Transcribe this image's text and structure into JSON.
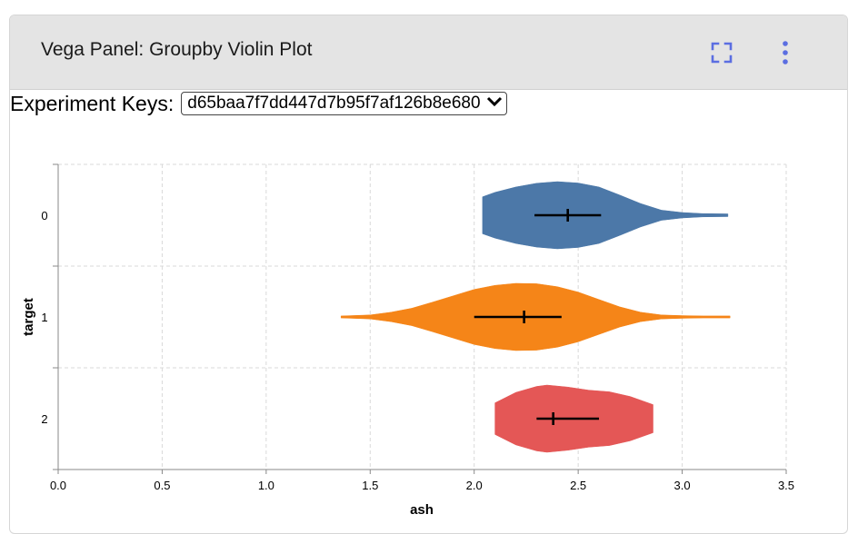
{
  "panel": {
    "title": "Vega Panel: Groupby Violin Plot",
    "expand_icon": "expand-icon",
    "more_icon": "more-vertical-icon",
    "icon_color": "#5b6ee1"
  },
  "experiment_keys": {
    "label": "Experiment Keys:",
    "selected": "d65baa7f7dd447d7b95f7af126b8e680"
  },
  "chart_data": {
    "type": "violin",
    "orientation": "horizontal",
    "title": "",
    "xlabel": "ash",
    "ylabel": "target",
    "xlim": [
      0,
      3.5
    ],
    "xticks": [
      0.0,
      0.5,
      1.0,
      1.5,
      2.0,
      2.5,
      3.0,
      3.5
    ],
    "xtick_labels": [
      "0.0",
      "0.5",
      "1.0",
      "1.5",
      "2.0",
      "2.5",
      "3.0",
      "3.5"
    ],
    "categories": [
      "0",
      "1",
      "2"
    ],
    "grid": true,
    "series": [
      {
        "category": "0",
        "color": "#4c78a8",
        "range": [
          2.04,
          3.22
        ],
        "quartiles": [
          2.29,
          2.61
        ],
        "median": 2.45,
        "density": [
          [
            2.04,
            0.55
          ],
          [
            2.1,
            0.68
          ],
          [
            2.2,
            0.84
          ],
          [
            2.3,
            0.95
          ],
          [
            2.4,
            1.0
          ],
          [
            2.5,
            0.96
          ],
          [
            2.6,
            0.84
          ],
          [
            2.7,
            0.6
          ],
          [
            2.8,
            0.35
          ],
          [
            2.9,
            0.15
          ],
          [
            3.0,
            0.08
          ],
          [
            3.1,
            0.05
          ],
          [
            3.22,
            0.04
          ]
        ]
      },
      {
        "category": "1",
        "color": "#f58518",
        "range": [
          1.36,
          3.23
        ],
        "quartiles": [
          2.0,
          2.42
        ],
        "median": 2.24,
        "density": [
          [
            1.36,
            0.03
          ],
          [
            1.5,
            0.06
          ],
          [
            1.6,
            0.14
          ],
          [
            1.7,
            0.26
          ],
          [
            1.8,
            0.44
          ],
          [
            1.9,
            0.63
          ],
          [
            2.0,
            0.82
          ],
          [
            2.1,
            0.94
          ],
          [
            2.2,
            1.0
          ],
          [
            2.3,
            0.99
          ],
          [
            2.4,
            0.9
          ],
          [
            2.5,
            0.74
          ],
          [
            2.6,
            0.52
          ],
          [
            2.7,
            0.3
          ],
          [
            2.8,
            0.14
          ],
          [
            2.9,
            0.06
          ],
          [
            3.0,
            0.04
          ],
          [
            3.1,
            0.03
          ],
          [
            3.23,
            0.03
          ]
        ]
      },
      {
        "category": "2",
        "color": "#e45756",
        "range": [
          2.1,
          2.86
        ],
        "quartiles": [
          2.3,
          2.6
        ],
        "median": 2.38,
        "density": [
          [
            2.1,
            0.47
          ],
          [
            2.2,
            0.78
          ],
          [
            2.3,
            0.96
          ],
          [
            2.35,
            1.0
          ],
          [
            2.45,
            0.94
          ],
          [
            2.55,
            0.85
          ],
          [
            2.65,
            0.8
          ],
          [
            2.75,
            0.66
          ],
          [
            2.86,
            0.42
          ]
        ]
      }
    ]
  }
}
